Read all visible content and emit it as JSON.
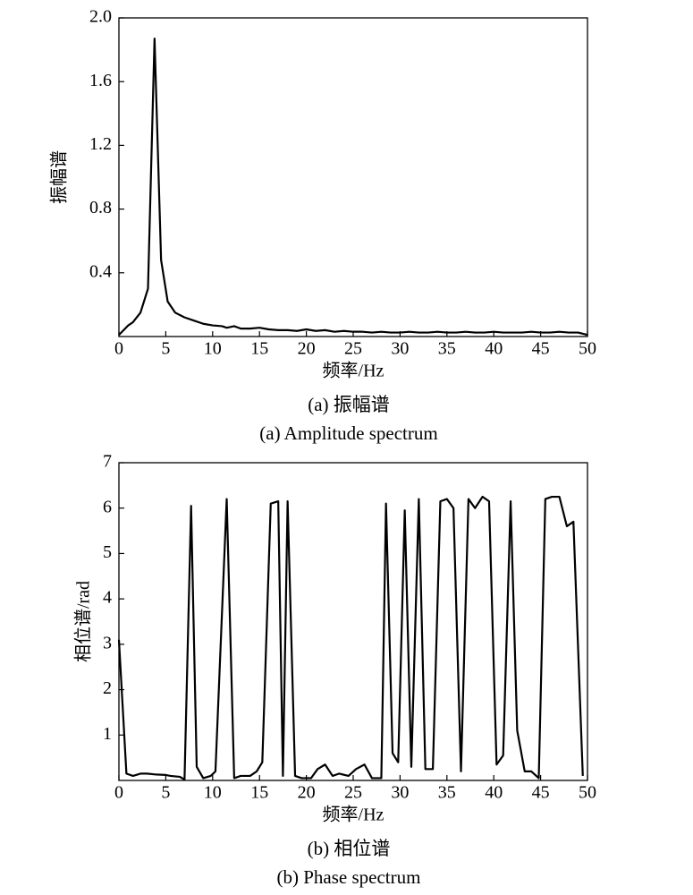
{
  "chart_data": [
    {
      "type": "line",
      "xlabel": "频率/Hz",
      "ylabel": "振幅谱",
      "title": "(a) 振幅谱",
      "subtitle": "(a) Amplitude spectrum",
      "xlim": [
        0,
        50
      ],
      "xticks": [
        0,
        5,
        10,
        15,
        20,
        25,
        30,
        35,
        40,
        45,
        50
      ],
      "ylim": [
        0,
        2
      ],
      "yticks": [
        {
          "value": 0.4,
          "label": "0.4"
        },
        {
          "value": 0.8,
          "label": "0.8"
        },
        {
          "value": 1.2,
          "label": "1.2"
        },
        {
          "value": 1.6,
          "label": "1.6"
        },
        {
          "value": 2,
          "label": "2.0"
        }
      ],
      "color": "#000000",
      "x": [
        0,
        1,
        1.5,
        2.3,
        3.1,
        3.8,
        4.5,
        5.2,
        6,
        7,
        8,
        9,
        10,
        11,
        11.5,
        12.3,
        13,
        14,
        15,
        16,
        17,
        18,
        19,
        20,
        21,
        22,
        23,
        24,
        25,
        26,
        27,
        28,
        29,
        30,
        31,
        32,
        33,
        34,
        35,
        36,
        37,
        38,
        39,
        40,
        41,
        42,
        43,
        44,
        45,
        46,
        47,
        48,
        49,
        50
      ],
      "values": [
        0.01,
        0.07,
        0.09,
        0.15,
        0.3,
        1.87,
        0.48,
        0.22,
        0.15,
        0.12,
        0.1,
        0.08,
        0.07,
        0.065,
        0.055,
        0.065,
        0.05,
        0.05,
        0.055,
        0.045,
        0.04,
        0.04,
        0.035,
        0.045,
        0.035,
        0.04,
        0.03,
        0.035,
        0.03,
        0.03,
        0.025,
        0.03,
        0.025,
        0.025,
        0.03,
        0.025,
        0.025,
        0.03,
        0.025,
        0.025,
        0.03,
        0.025,
        0.025,
        0.03,
        0.025,
        0.025,
        0.025,
        0.03,
        0.025,
        0.025,
        0.03,
        0.025,
        0.025,
        0.01
      ]
    },
    {
      "type": "line",
      "xlabel": "频率/Hz",
      "ylabel": "相位谱/rad",
      "title": "(b) 相位谱",
      "subtitle": "(b) Phase spectrum",
      "xlim": [
        0,
        50
      ],
      "xticks": [
        0,
        5,
        10,
        15,
        20,
        25,
        30,
        35,
        40,
        45,
        50
      ],
      "ylim": [
        0,
        7
      ],
      "yticks": [
        1,
        2,
        3,
        4,
        5,
        6,
        7
      ],
      "color": "#000000",
      "x": [
        0,
        0.8,
        1.5,
        2.3,
        3,
        4,
        5,
        5.5,
        6.5,
        7,
        7.7,
        8.3,
        9,
        9.8,
        10.3,
        11.5,
        12.3,
        13,
        14,
        14.7,
        15.3,
        16.2,
        17,
        17.5,
        18,
        18.8,
        19.5,
        20.5,
        21.2,
        22,
        22.8,
        23.5,
        24.5,
        25.3,
        26.2,
        27,
        28,
        28.5,
        29.2,
        29.8,
        30.5,
        31.2,
        32,
        32.7,
        33.5,
        34.3,
        35,
        35.7,
        36.5,
        37.3,
        38,
        38.8,
        39.5,
        40.3,
        41,
        41.8,
        42.5,
        43.3,
        44,
        44.8,
        45.5,
        46.2,
        47,
        47.8,
        48.5,
        49.5
      ],
      "values": [
        3.1,
        0.15,
        0.1,
        0.15,
        0.15,
        0.13,
        0.12,
        0.1,
        0.08,
        0.02,
        6.05,
        0.3,
        0.05,
        0.1,
        0.2,
        6.2,
        0.05,
        0.1,
        0.1,
        0.2,
        0.4,
        6.1,
        6.15,
        0.1,
        6.15,
        0.1,
        0.05,
        0.05,
        0.25,
        0.35,
        0.1,
        0.15,
        0.1,
        0.25,
        0.35,
        0.05,
        0.05,
        6.1,
        0.6,
        0.4,
        5.95,
        0.3,
        6.2,
        0.25,
        0.25,
        6.15,
        6.2,
        6.0,
        0.2,
        6.2,
        6.0,
        6.25,
        6.15,
        0.35,
        0.55,
        6.15,
        1.1,
        0.2,
        0.2,
        0.05,
        6.2,
        6.25,
        6.25,
        5.6,
        5.7,
        0.1
      ]
    }
  ]
}
